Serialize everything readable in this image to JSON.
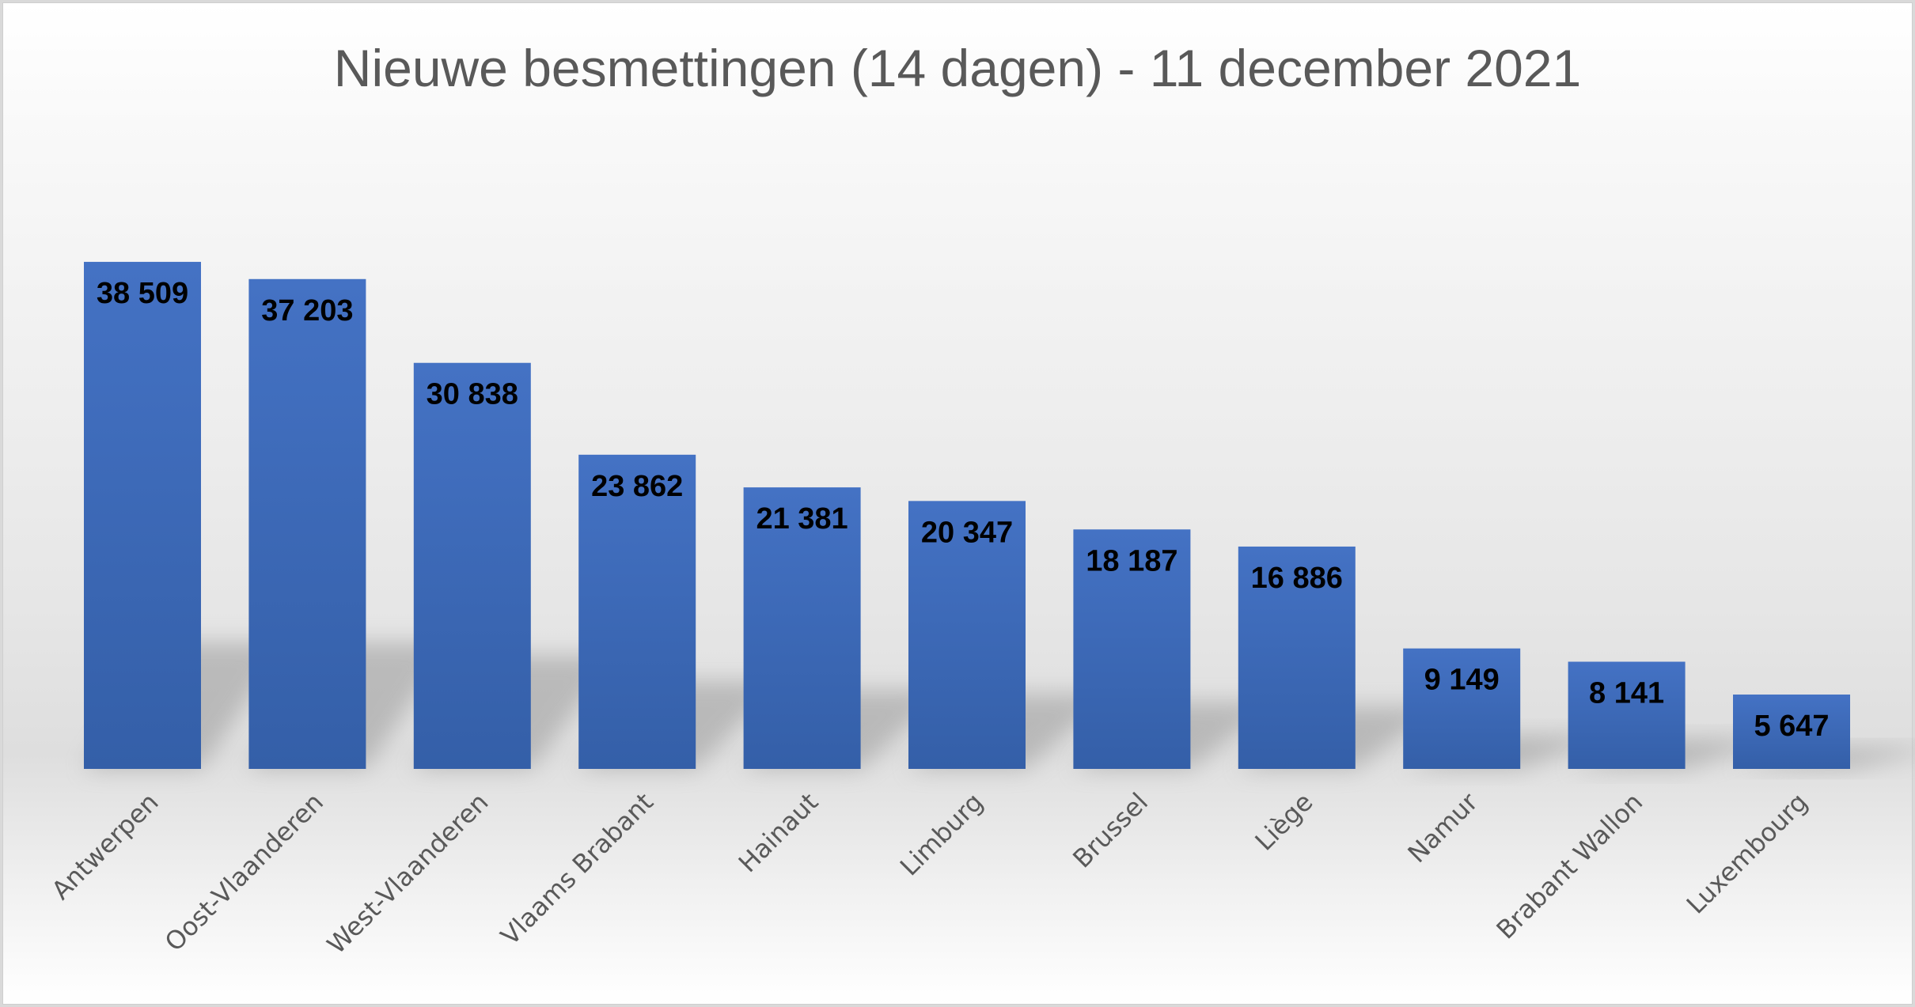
{
  "chart_data": {
    "type": "bar",
    "title": "Nieuwe besmettingen (14 dagen) - 11 december 2021",
    "xlabel": "",
    "ylabel": "",
    "categories": [
      "Antwerpen",
      "Oost-Vlaanderen",
      "West-Vlaanderen",
      "Vlaams Brabant",
      "Hainaut",
      "Limburg",
      "Brussel",
      "Liège",
      "Namur",
      "Brabant Wallon",
      "Luxembourg"
    ],
    "values": [
      38509,
      37203,
      30838,
      23862,
      21381,
      20347,
      18187,
      16886,
      9149,
      8141,
      5647
    ],
    "value_labels": [
      "38 509",
      "37 203",
      "30 838",
      "23 862",
      "21 381",
      "20 347",
      "18 187",
      "16 886",
      "9 149",
      "8 141",
      "5 647"
    ],
    "ylim": [
      0,
      45000
    ],
    "grid": false,
    "legend": "none",
    "bar_color": "#4472c4",
    "bar_color_bottom": "#345fa8",
    "data_label_position": "inside-end",
    "x_tick_rotation": "-45"
  }
}
